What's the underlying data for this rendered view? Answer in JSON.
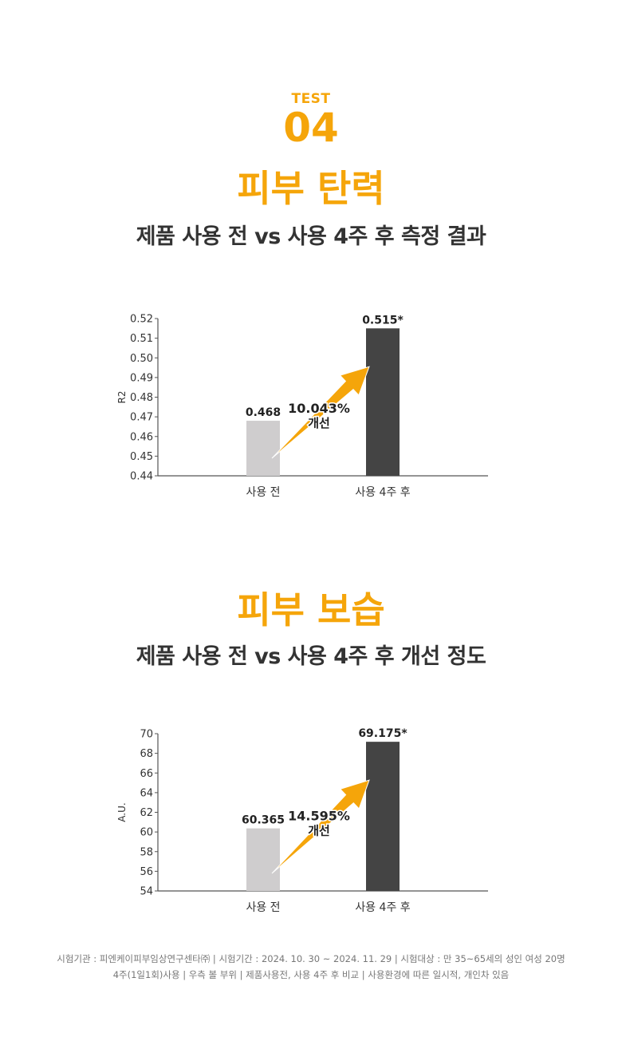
{
  "header": {
    "test_label": "TEST",
    "test_number": "04"
  },
  "sections": [
    {
      "title": "피부 탄력",
      "subtitle": "제품 사용 전 vs 사용 4주 후 측정 결과"
    },
    {
      "title": "피부 보습",
      "subtitle": "제품 사용 전 vs 사용 4주 후 개선 정도"
    }
  ],
  "colors": {
    "accent": "#f5a50a",
    "bar_before": "#cfcdce",
    "bar_after": "#444444",
    "text_dark": "#333333"
  },
  "chart_data": [
    {
      "type": "bar",
      "categories": [
        "사용 전",
        "사용 4주 후"
      ],
      "values": [
        0.468,
        0.515
      ],
      "value_labels": [
        "0.468",
        "0.515*"
      ],
      "ylabel": "R2",
      "xlabel": "",
      "ylim": [
        0.44,
        0.52
      ],
      "yticks": [
        0.44,
        0.45,
        0.46,
        0.47,
        0.48,
        0.49,
        0.5,
        0.51,
        0.52
      ],
      "ytick_labels": [
        "0.44",
        "0.45",
        "0.46",
        "0.47",
        "0.48",
        "0.49",
        "0.50",
        "0.51",
        "0.52"
      ],
      "annotation": {
        "percent": "10.043%",
        "text": "개선"
      },
      "grid": false
    },
    {
      "type": "bar",
      "categories": [
        "사용 전",
        "사용 4주 후"
      ],
      "values": [
        60.365,
        69.175
      ],
      "value_labels": [
        "60.365",
        "69.175*"
      ],
      "ylabel": "A.U.",
      "xlabel": "",
      "ylim": [
        54,
        70
      ],
      "yticks": [
        54,
        56,
        58,
        60,
        62,
        64,
        66,
        68,
        70
      ],
      "ytick_labels": [
        "54",
        "56",
        "58",
        "60",
        "62",
        "64",
        "66",
        "68",
        "70"
      ],
      "annotation": {
        "percent": "14.595%",
        "text": "개선"
      },
      "grid": false
    }
  ],
  "footnote": {
    "line1": "시험기관 : 피엔케이피부임상연구센타㈜  |  시험기간 : 2024. 10. 30 ~ 2024. 11. 29  |  시험대상 :  만 35~65세의 성인 여성 20명",
    "line2": "4주(1일1회)사용  |  우측 볼 부위  |  제품사용전, 사용 4주 후 비교  |  사용환경에 따른 일시적, 개인차 있음"
  }
}
